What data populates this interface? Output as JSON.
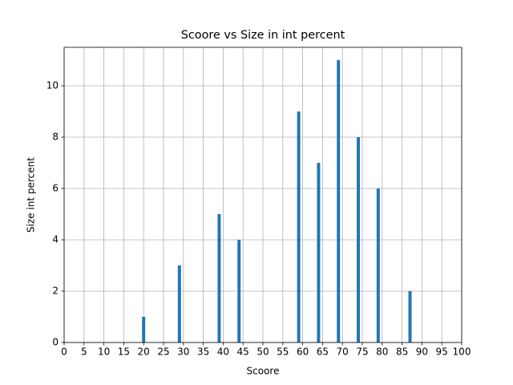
{
  "chart_data": {
    "type": "bar",
    "title": "Scoore vs Size in int percent",
    "x_label": "Scoore",
    "y_label": "Size int percent",
    "x": [
      20,
      29,
      39,
      44,
      59,
      64,
      69,
      74,
      79,
      87
    ],
    "values": [
      1,
      3,
      5,
      4,
      9,
      7,
      11,
      8,
      6,
      2
    ],
    "color": "#1f77b4",
    "xlim": [
      0,
      100
    ],
    "xticks": [
      0,
      5,
      10,
      15,
      20,
      25,
      30,
      35,
      40,
      45,
      50,
      55,
      60,
      65,
      70,
      75,
      80,
      85,
      90,
      95,
      100
    ],
    "ylim": [
      0,
      11.5
    ],
    "yticks": [
      0,
      2,
      4,
      6,
      8,
      10
    ],
    "grid": true
  }
}
